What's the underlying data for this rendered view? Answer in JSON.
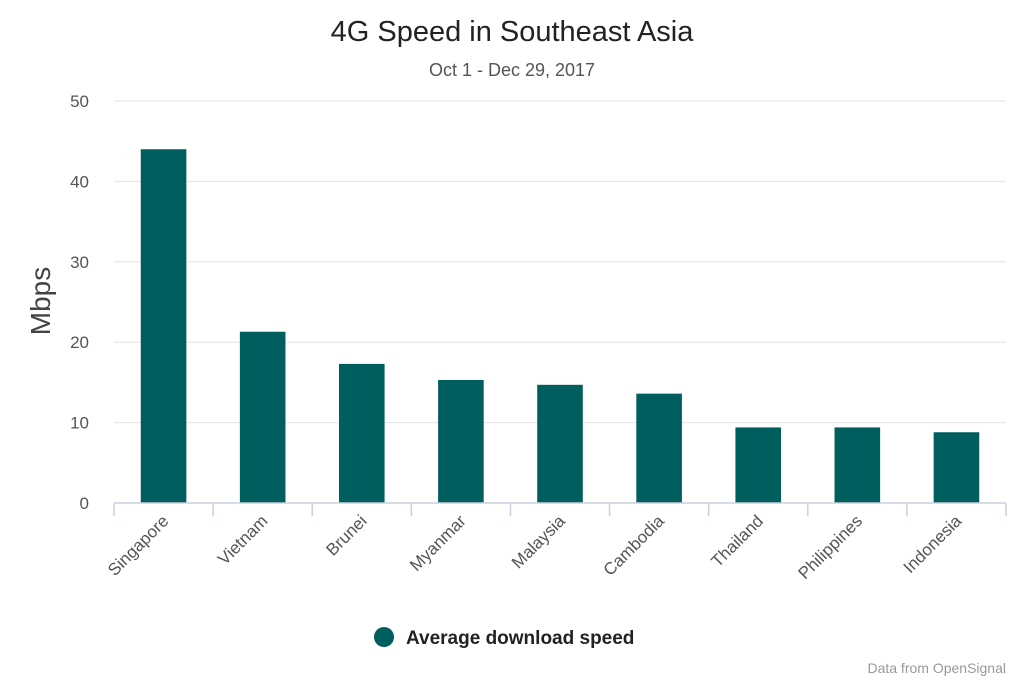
{
  "chart_data": {
    "type": "bar",
    "title": "4G Speed in Southeast Asia",
    "subtitle": "Oct 1 - Dec 29, 2017",
    "xlabel": "",
    "ylabel": "Mbps",
    "ylim": [
      0,
      50
    ],
    "yticks": [
      "0",
      "10",
      "20",
      "30",
      "40",
      "50"
    ],
    "categories": [
      "Singapore",
      "Vietnam",
      "Brunei",
      "Myanmar",
      "Malaysia",
      "Cambodia",
      "Thailand",
      "Philippines",
      "Indonesia"
    ],
    "series": [
      {
        "name": "Average download speed",
        "values": [
          44.0,
          21.3,
          17.3,
          15.3,
          14.7,
          13.6,
          9.4,
          9.4,
          8.8
        ]
      }
    ],
    "grid": true,
    "legend_position": "bottom-center",
    "credit": "Data from OpenSignal",
    "colors": {
      "bar": "#005e5e",
      "grid": "#e3e3e3",
      "axis": "#c7d0dc"
    }
  }
}
